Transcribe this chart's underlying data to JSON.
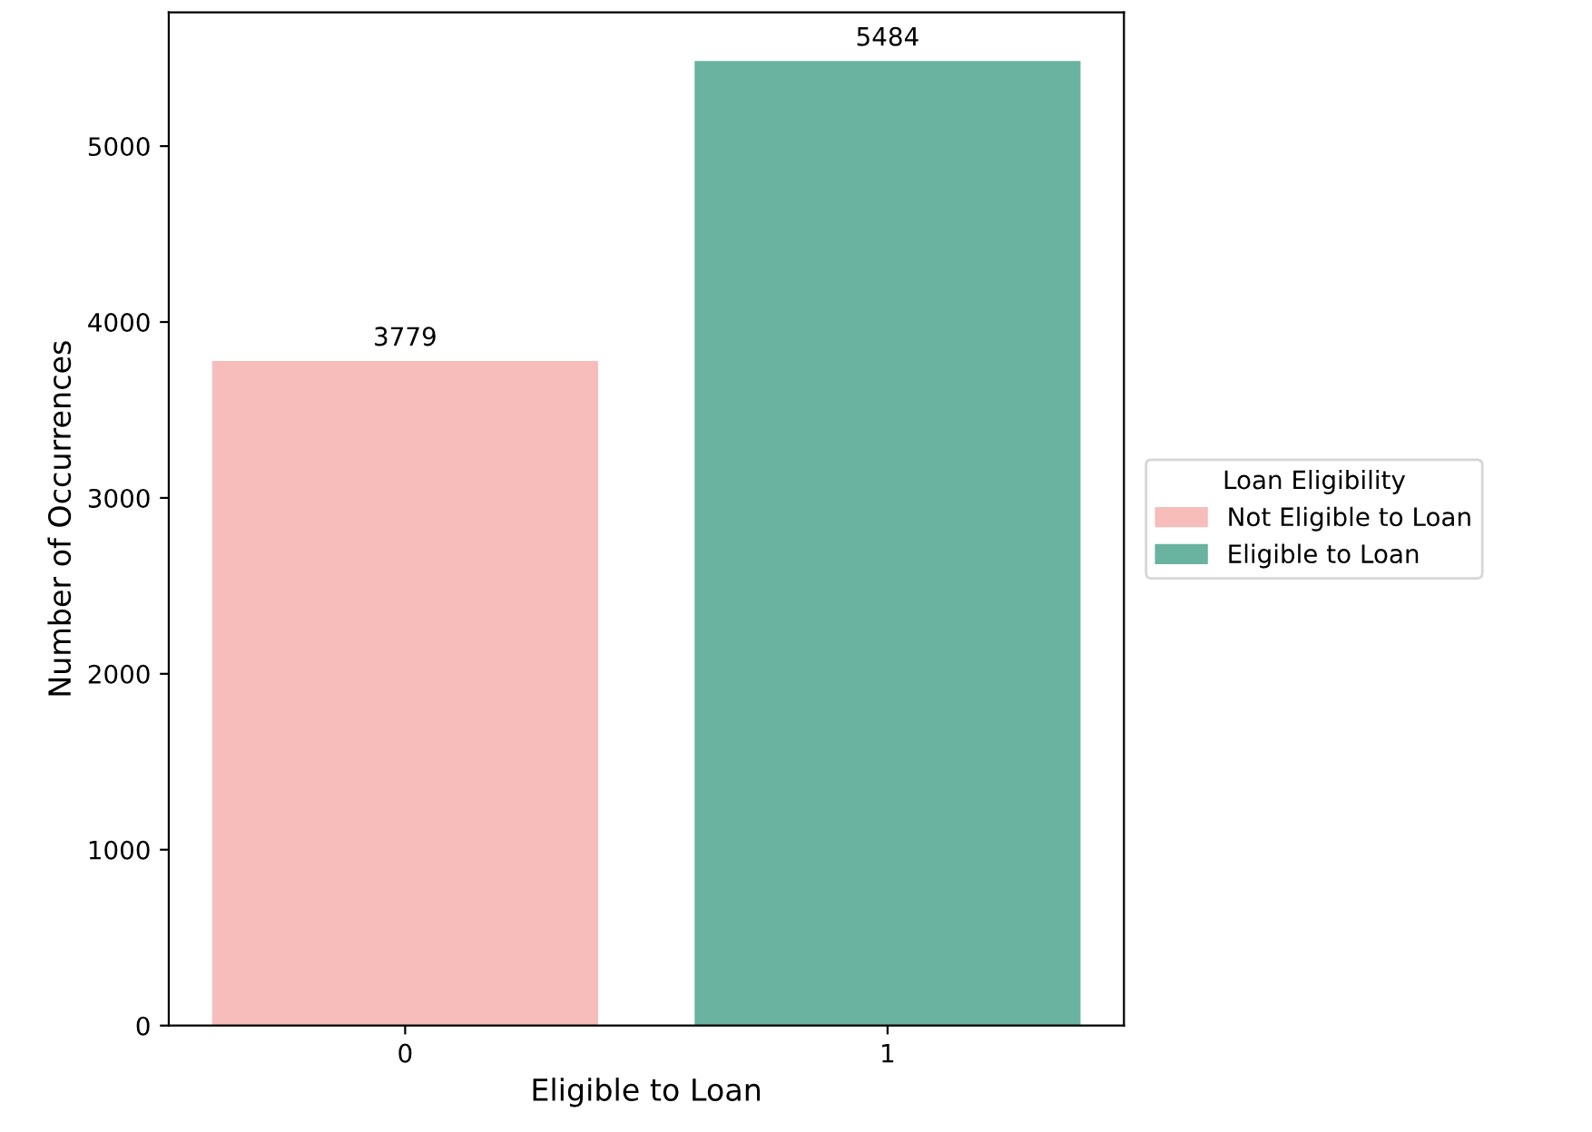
{
  "chart_data": {
    "type": "bar",
    "xlabel": "Eligible to Loan",
    "ylabel": "Number of Occurrences",
    "legend_title": "Loan Eligibility",
    "categories": [
      "0",
      "1"
    ],
    "series": [
      {
        "name": "Not Eligible to Loan",
        "color": "#f6bdba",
        "values": [
          3779,
          null
        ]
      },
      {
        "name": "Eligible to Loan",
        "color": "#69b3a0",
        "values": [
          null,
          5484
        ]
      }
    ],
    "ylim": [
      0,
      5760
    ],
    "yticks": [
      0,
      1000,
      2000,
      3000,
      4000,
      5000
    ],
    "data_labels": true,
    "grid": false,
    "legend": "right"
  }
}
